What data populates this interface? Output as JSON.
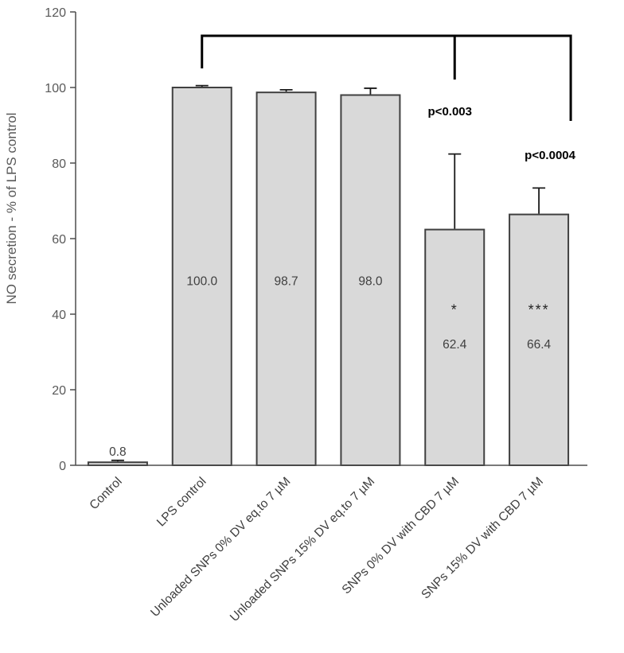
{
  "chart_data": {
    "type": "bar",
    "title": "",
    "xlabel": "",
    "ylabel": "NO secretion - % of LPS control",
    "ylim": [
      0,
      120
    ],
    "yticks": [
      0,
      20,
      40,
      60,
      80,
      100,
      120
    ],
    "grid": false,
    "legend": null,
    "categories": [
      "Control",
      "LPS control",
      "Unloaded SNPs 0% DV eq.to 7 µM",
      "Unloaded SNPs 15% DV eq.to 7 µM",
      "SNPs 0% DV with CBD 7 µM",
      "SNPs 15% DV with CBD 7 µM"
    ],
    "values": [
      0.8,
      100.0,
      98.7,
      98.0,
      62.4,
      66.4
    ],
    "value_labels": [
      "0.8",
      "100.0",
      "98.7",
      "98.0",
      "62.4",
      "66.4"
    ],
    "errors_plus": [
      0.5,
      0.5,
      0.7,
      1.8,
      20.0,
      7.0
    ],
    "annotations": [
      {
        "bar_index": 4,
        "stars": "*",
        "p_label": "p<0.003"
      },
      {
        "bar_index": 5,
        "stars": "***",
        "p_label": "p<0.0004"
      }
    ],
    "bracket": {
      "from_bar": 1,
      "mid_bar": 4,
      "end_bar": 5
    },
    "colors": {
      "bar_fill": "#d9d9d9",
      "bar_stroke": "#404040",
      "error_bar": "#1a1a1a",
      "axis": "#4d4d4d",
      "axis_text": "#595959",
      "category_text": "#3d3d3d",
      "value_text": "#404040",
      "annotation_text": "#000000",
      "bracket": "#000000"
    }
  }
}
